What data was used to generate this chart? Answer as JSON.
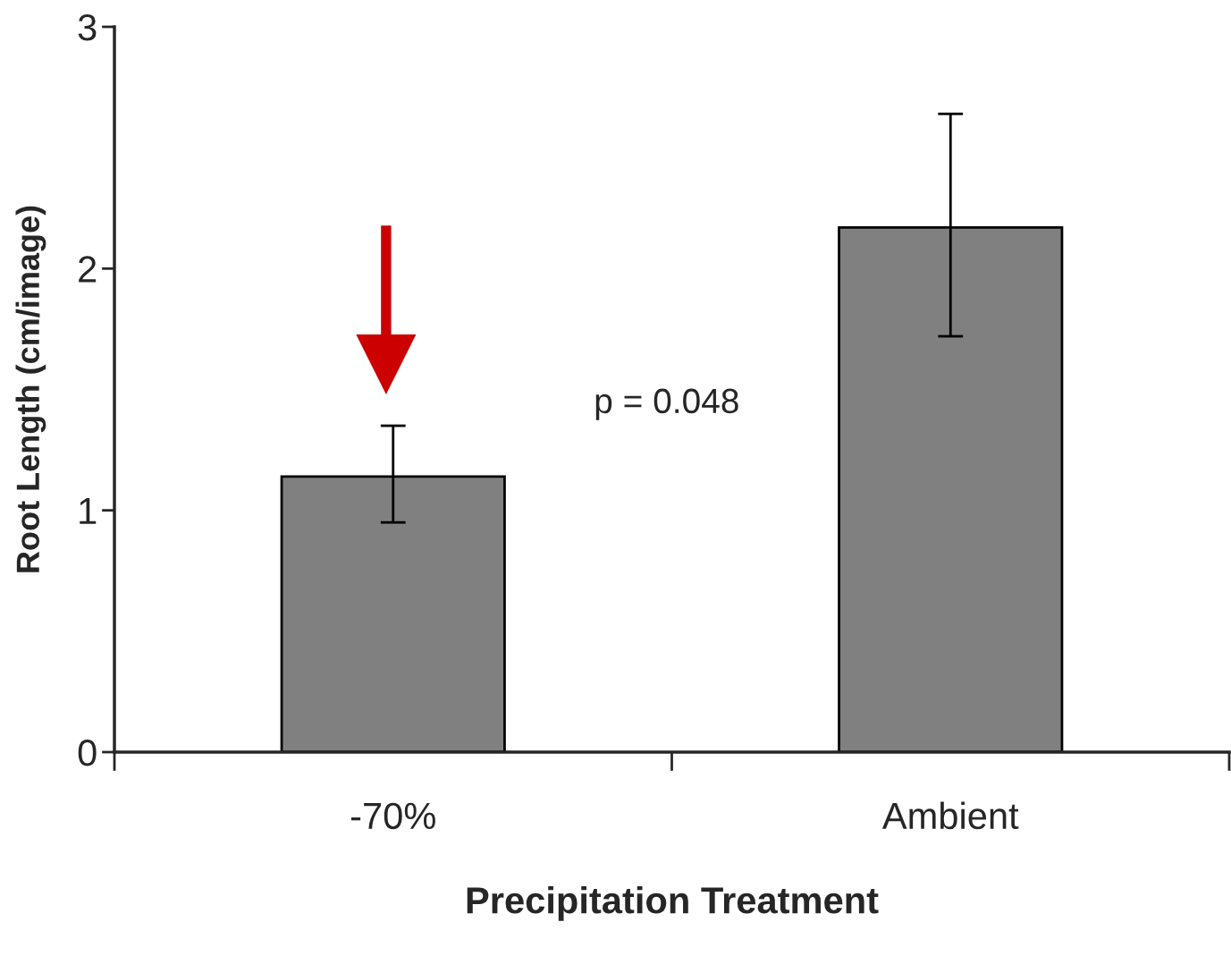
{
  "chart_data": {
    "type": "bar",
    "xlabel": "Precipitation Treatment",
    "ylabel": "Root Length (cm/image)",
    "categories": [
      "-70%",
      "Ambient"
    ],
    "values": [
      1.14,
      2.17
    ],
    "errors": [
      [
        0.95,
        1.35
      ],
      [
        1.72,
        2.64
      ]
    ],
    "color": "#808080",
    "ylim": [
      0,
      3
    ],
    "yticks": [
      0,
      1,
      2,
      3
    ],
    "grid": false,
    "annotations": [
      "p = 0.048"
    ]
  }
}
